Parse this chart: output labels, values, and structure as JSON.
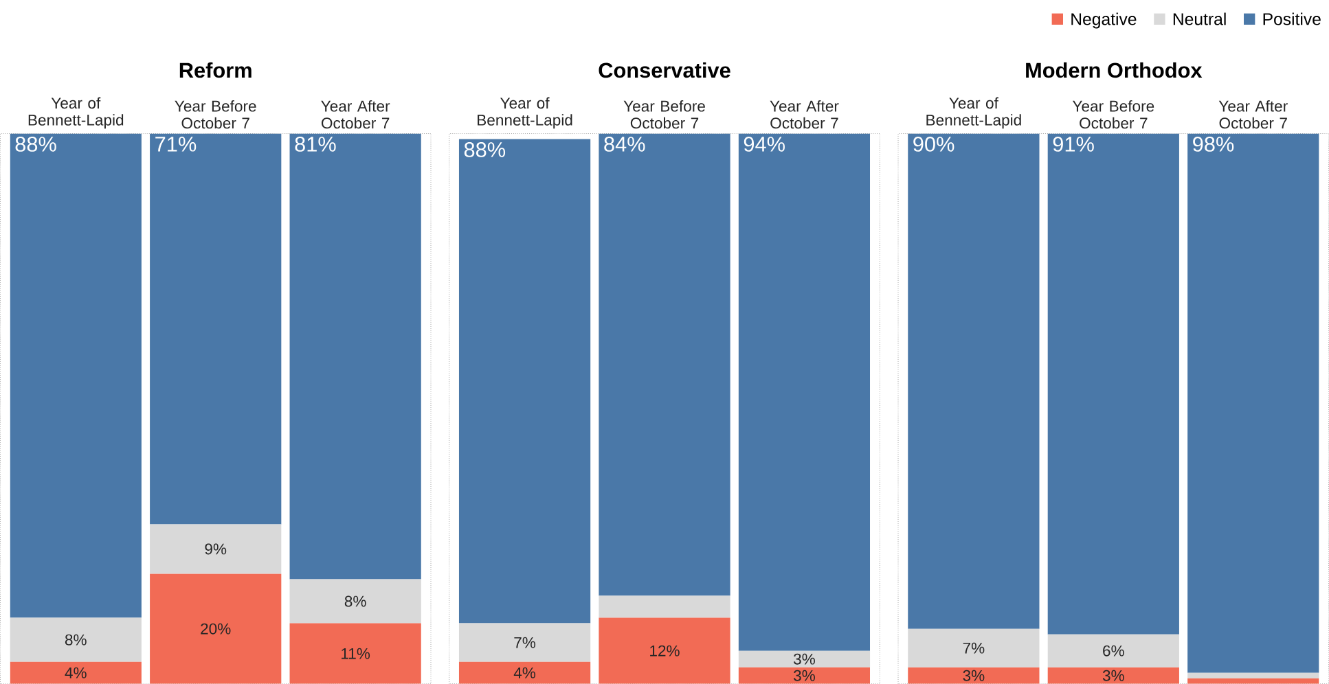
{
  "chart_data": [
    {
      "type": "bar",
      "stacked": true,
      "title": "Reform",
      "categories": [
        "Year of Bennett-Lapid",
        "Year Before October 7",
        "Year After October 7"
      ],
      "ylim": [
        0,
        100
      ],
      "data_labels": true,
      "series": [
        {
          "color": "#f26b55",
          "values": [
            4,
            20,
            11
          ],
          "value_labels": [
            "4%",
            "20%",
            "11%"
          ]
        },
        {
          "color": "#d9d9d9",
          "values": [
            8,
            9,
            8
          ],
          "value_labels": [
            "8%",
            "9%",
            "8%"
          ]
        },
        {
          "color": "#4a78a8",
          "values": [
            88,
            71,
            81
          ],
          "value_labels": [
            "88%",
            "71%",
            "81%"
          ]
        }
      ]
    },
    {
      "type": "bar",
      "stacked": true,
      "title": "Conservative",
      "categories": [
        "Year of Bennett-Lapid",
        "Year Before October 7",
        "Year After October 7"
      ],
      "ylim": [
        0,
        100
      ],
      "data_labels": true,
      "series": [
        {
          "color": "#f26b55",
          "values": [
            4,
            12,
            3
          ],
          "value_labels": [
            "4%",
            "12%",
            "3%"
          ]
        },
        {
          "color": "#d9d9d9",
          "values": [
            7,
            4,
            3
          ],
          "value_labels": [
            "7%",
            null,
            "3%"
          ]
        },
        {
          "color": "#4a78a8",
          "values": [
            88,
            84,
            94
          ],
          "value_labels": [
            "88%",
            "84%",
            "94%"
          ]
        }
      ]
    },
    {
      "type": "bar",
      "stacked": true,
      "title": "Modern Orthodox",
      "categories": [
        "Year of Bennett-Lapid",
        "Year Before October 7",
        "Year After October 7"
      ],
      "ylim": [
        0,
        100
      ],
      "data_labels": true,
      "legend": "top right",
      "series": [
        {
          "name": "Negative",
          "color": "#f26b55",
          "values": [
            3,
            3,
            1
          ],
          "value_labels": [
            "3%",
            "3%",
            null
          ]
        },
        {
          "name": "Neutral",
          "color": "#d9d9d9",
          "values": [
            7,
            6,
            1
          ],
          "value_labels": [
            "7%",
            "6%",
            null
          ]
        },
        {
          "name": "Positive",
          "color": "#4a78a8",
          "values": [
            90,
            91,
            98
          ],
          "value_labels": [
            "90%",
            "91%",
            "98%"
          ]
        }
      ]
    }
  ]
}
